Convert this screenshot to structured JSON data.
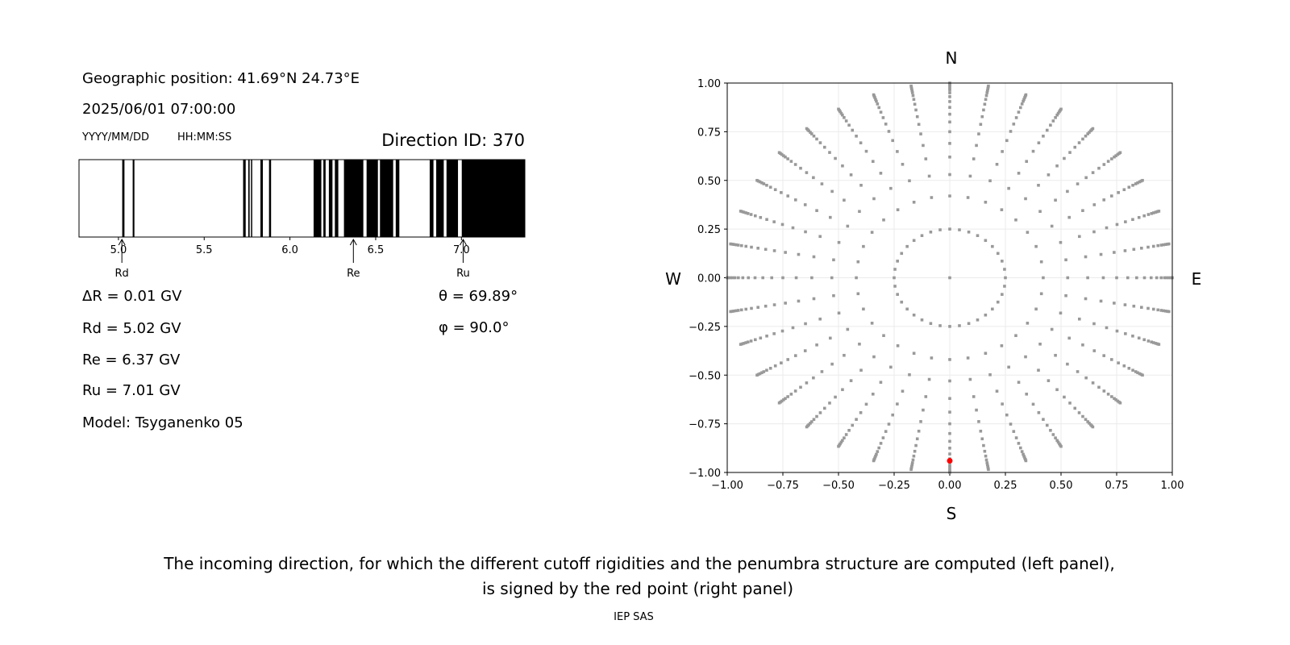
{
  "left_panel": {
    "geo_position": "Geographic position: 41.69°N 24.73°E",
    "datetime": "2025/06/01 07:00:00",
    "date_format": "YYYY/MM/DD",
    "time_format": "HH:MM:SS",
    "direction_id": "Direction ID: 370",
    "delta_r": "ΔR = 0.01 GV",
    "rd": "Rd = 5.02 GV",
    "re": "Re = 6.37 GV",
    "ru": "Ru = 7.01 GV",
    "model": "Model: Tsyganenko 05",
    "theta": "θ = 69.89°",
    "phi": "φ = 90.0°"
  },
  "chart_data": [
    {
      "type": "bar",
      "description_label": "penumbra",
      "xlim": [
        4.77,
        7.37
      ],
      "xticks": [
        "5.0",
        "5.5",
        "6.0",
        "6.5",
        "7.0"
      ],
      "xtick_values": [
        5.0,
        5.5,
        6.0,
        6.5,
        7.0
      ],
      "forbidden_bands_gv": [
        [
          5.022,
          5.035
        ],
        [
          5.083,
          5.093
        ],
        [
          5.727,
          5.742
        ],
        [
          5.757,
          5.765
        ],
        [
          5.773,
          5.78
        ],
        [
          5.828,
          5.842
        ],
        [
          5.878,
          5.89
        ],
        [
          6.138,
          6.183
        ],
        [
          6.195,
          6.208
        ],
        [
          6.227,
          6.248
        ],
        [
          6.262,
          6.282
        ],
        [
          6.315,
          6.428
        ],
        [
          6.447,
          6.513
        ],
        [
          6.525,
          6.602
        ],
        [
          6.617,
          6.638
        ],
        [
          6.815,
          6.837
        ],
        [
          6.853,
          6.897
        ],
        [
          6.913,
          6.98
        ],
        [
          7.002,
          7.37
        ]
      ],
      "markers": [
        {
          "label": "Rd",
          "value": 5.02
        },
        {
          "label": "Re",
          "value": 6.37
        },
        {
          "label": "Ru",
          "value": 7.01
        }
      ],
      "band_color": "#000000"
    },
    {
      "type": "scatter",
      "xlim": [
        -1,
        1
      ],
      "ylim": [
        -1,
        1
      ],
      "grid": true,
      "xticks": [
        "−1.00",
        "−0.75",
        "−0.50",
        "−0.25",
        "0.00",
        "0.25",
        "0.50",
        "0.75",
        "1.00"
      ],
      "yticks": [
        "−1.00",
        "−0.75",
        "−0.50",
        "−0.25",
        "0.00",
        "0.25",
        "0.50",
        "0.75",
        "1.00"
      ],
      "tick_values": [
        -1,
        -0.75,
        -0.5,
        -0.25,
        0,
        0.25,
        0.5,
        0.75,
        1
      ],
      "compass": {
        "n": "N",
        "s": "S",
        "w": "W",
        "e": "E"
      },
      "directions": {
        "center": [
          0,
          0
        ],
        "rings": [
          {
            "r": 0.25,
            "n": 36
          },
          {
            "r": 0.42,
            "n": 32
          }
        ],
        "ray_azimuth_step_deg": 10,
        "ray_radii": [
          0.53,
          0.62,
          0.69,
          0.75,
          0.8,
          0.84,
          0.875,
          0.905,
          0.93,
          0.95,
          0.965,
          0.975,
          0.985,
          0.993,
          1.0
        ]
      },
      "point_color": "#999999",
      "selected_point": {
        "x": 0.0,
        "y": -0.94,
        "color": "#ff0000"
      }
    }
  ],
  "caption": {
    "line1": "The incoming direction, for which the different cutoff rigidities and the penumbra structure are computed (left panel),",
    "line2": "is signed by the red point (right panel)",
    "credit": "IEP SAS"
  }
}
